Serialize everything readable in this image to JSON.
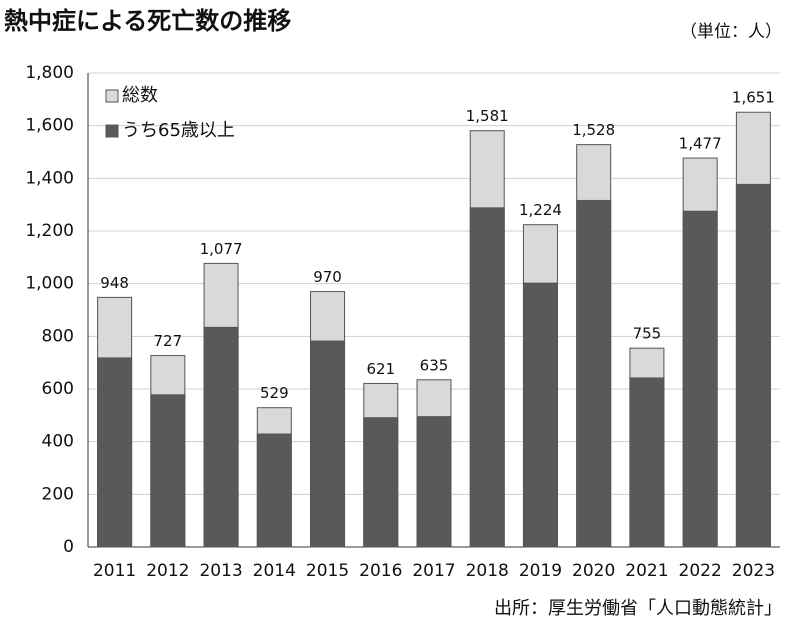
{
  "chart_data": {
    "type": "bar",
    "title": "熱中症による死亡数の推移",
    "unit_note": "（単位：人）",
    "source": "出所：厚生労働省「人口動態統計」",
    "categories": [
      "2011",
      "2012",
      "2013",
      "2014",
      "2015",
      "2016",
      "2017",
      "2018",
      "2019",
      "2020",
      "2021",
      "2022",
      "2023"
    ],
    "series": [
      {
        "name": "総数",
        "color": "#d9d9d9",
        "values": [
          948,
          727,
          1077,
          529,
          970,
          621,
          635,
          1581,
          1224,
          1528,
          755,
          1477,
          1651
        ],
        "value_labels": [
          "948",
          "727",
          "1,077",
          "529",
          "970",
          "621",
          "635",
          "1,581",
          "1,224",
          "1,528",
          "755",
          "1,477",
          "1,651"
        ]
      },
      {
        "name": "うち65歳以上",
        "color": "#595959",
        "values": [
          718,
          578,
          834,
          429,
          782,
          491,
          495,
          1288,
          1002,
          1316,
          642,
          1275,
          1377
        ]
      }
    ],
    "ylim": [
      0,
      1800
    ],
    "yticks": [
      0,
      200,
      400,
      600,
      800,
      {
        "value": 1000,
        "label": "1,000"
      },
      {
        "value": 1200,
        "label": "1,200"
      },
      {
        "value": 1400,
        "label": "1,400"
      },
      {
        "value": 1600,
        "label": "1,600"
      },
      {
        "value": 1800,
        "label": "1,800"
      }
    ],
    "grid": true,
    "overlap": true
  }
}
